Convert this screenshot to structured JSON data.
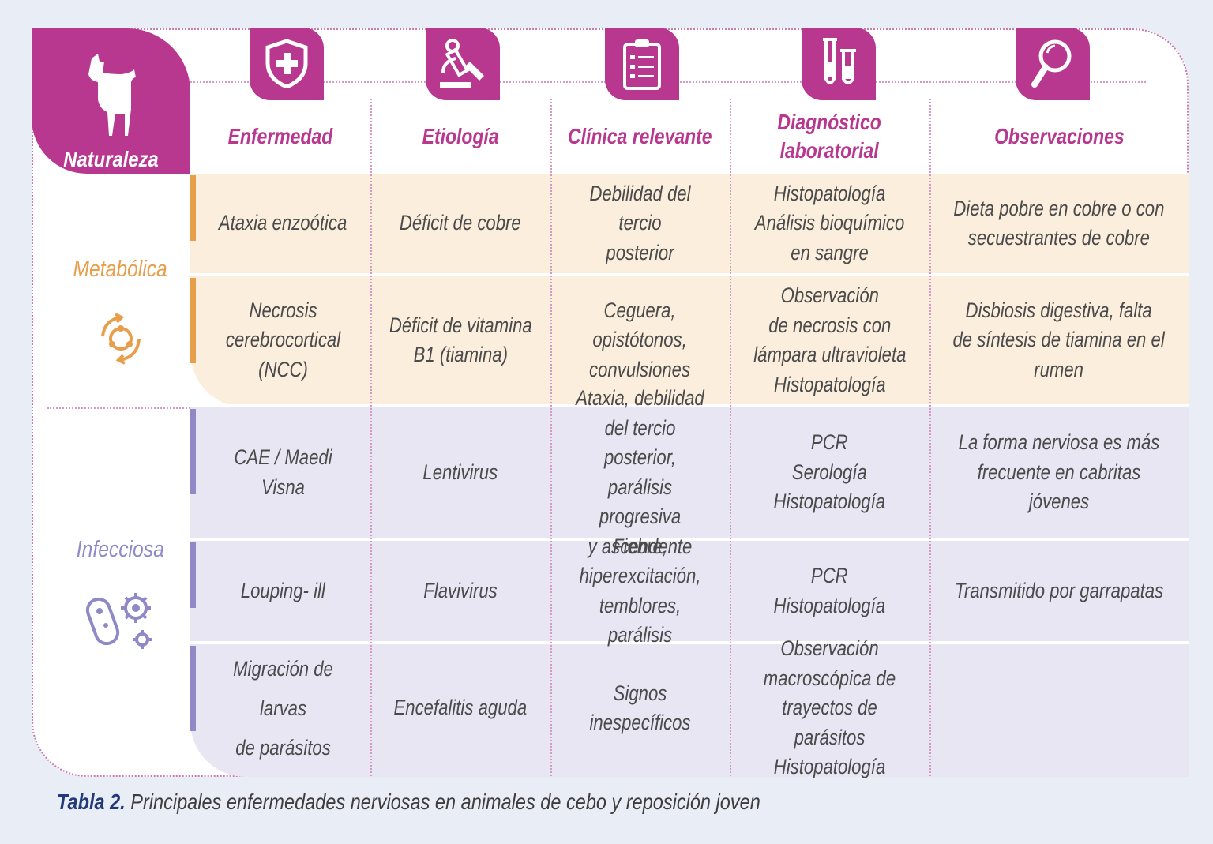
{
  "colors": {
    "accent": "#b8378f",
    "metabolic": "#e79f4c",
    "infectious": "#8f89c7"
  },
  "header": {
    "naturaleza": "Naturaleza",
    "columns": [
      "Enfermedad",
      "Etiología",
      "Clínica relevante",
      "Diagnóstico\nlaboratorial",
      "Observaciones"
    ],
    "icons": [
      "goat-icon",
      "shield-plus-icon",
      "microscope-icon",
      "clipboard-icon",
      "test-tubes-icon",
      "magnifier-icon"
    ]
  },
  "groups": [
    {
      "label": "Metabólica",
      "icon": "cycle-icon"
    },
    {
      "label": "Infecciosa",
      "icon": "microbes-icon"
    }
  ],
  "rows": [
    [
      "Ataxia enzoótica",
      "Déficit de cobre",
      "Debilidad del tercio\nposterior",
      "Histopatología\nAnálisis bioquímico\nen sangre",
      "Dieta pobre en cobre o con\nsecuestrantes de cobre"
    ],
    [
      "Necrosis\ncerebrocortical\n(NCC)",
      "Déficit de vitamina\nB1 (tiamina)",
      "Ceguera,\nopistótonos,\nconvulsiones",
      "Observación\nde necrosis con\nlámpara ultravioleta\nHistopatología",
      "Disbiosis digestiva, falta\nde síntesis de tiamina en el\nrumen"
    ],
    [
      "CAE / Maedi Visna",
      "Lentivirus",
      "Ataxia, debilidad\ndel tercio posterior,\nparálisis progresiva\ny ascendente",
      "PCR\nSerología\nHistopatología",
      "La forma nerviosa es más\nfrecuente en cabritas jóvenes"
    ],
    [
      "Louping- ill",
      "Flavivirus",
      "Fiebre,\nhiperexcitación,\ntemblores, parálisis",
      "PCR\nHistopatología",
      "Transmitido por garrapatas"
    ],
    [
      "Migración de larvas\nde parásitos",
      "Encefalitis aguda",
      "Signos inespecíficos",
      "Observación\nmacroscópica de\ntrayectos de parásitos\nHistopatología",
      ""
    ]
  ],
  "caption": {
    "label": "Tabla 2.",
    "text": "Principales enfermedades nerviosas en animales de cebo y reposición joven"
  }
}
